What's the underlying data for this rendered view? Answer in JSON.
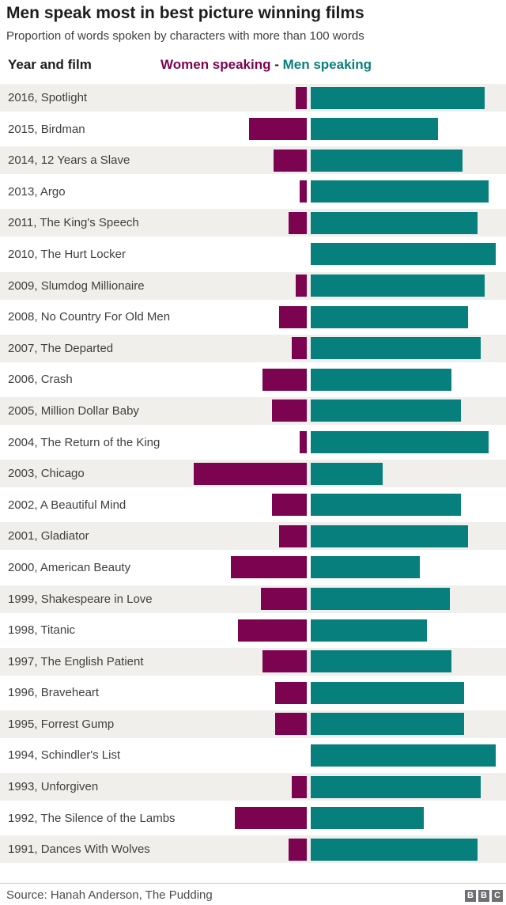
{
  "title": "Men speak most in best picture winning films",
  "subtitle": "Proportion of words spoken by characters with more than 100 words",
  "column_header": {
    "left_label": "Year and film",
    "legend_women": "Women speaking",
    "legend_separator": " - ",
    "legend_men": "Men speaking"
  },
  "colors": {
    "women": "#7b0350",
    "men": "#077f7c",
    "row_stripe": "#f1efeb",
    "logo_gray": "#6e6e73"
  },
  "chart_data": {
    "type": "bar",
    "orientation": "horizontal-diverging",
    "title": "Men speak most in best picture winning films",
    "subtitle": "Proportion of words spoken by characters with more than 100 words",
    "unit": "percent of words spoken by characters with more than 100 words",
    "axis_range_percent": [
      0,
      100
    ],
    "grid": false,
    "legend_position": "top",
    "categories": [
      "2016, Spotlight",
      "2015, Birdman",
      "2014, 12 Years a Slave",
      "2013, Argo",
      "2011, The King's Speech",
      "2010, The Hurt Locker",
      "2009, Slumdog Millionaire",
      "2008, No Country For Old Men",
      "2007, The Departed",
      "2006, Crash",
      "2005, Million Dollar Baby",
      "2004, The Return of the King",
      "2003, Chicago",
      "2002, A Beautiful Mind",
      "2001, Gladiator",
      "2000, American Beauty",
      "1999, Shakespeare in Love",
      "1998, Titanic",
      "1997, The English Patient",
      "1996, Braveheart",
      "1995, Forrest Gump",
      "1994, Schindler's List",
      "1993, Unforgiven",
      "1992, The Silence of the Lambs",
      "1991, Dances With Wolves"
    ],
    "series": [
      {
        "name": "Women speaking",
        "color": "#7b0350",
        "values": [
          6,
          31,
          18,
          4,
          10,
          0,
          6,
          15,
          8,
          24,
          19,
          4,
          61,
          19,
          15,
          41,
          25,
          37,
          24,
          17,
          17,
          0,
          8,
          39,
          10
        ]
      },
      {
        "name": "Men speaking",
        "color": "#077f7c",
        "values": [
          94,
          69,
          82,
          96,
          90,
          100,
          94,
          85,
          92,
          76,
          81,
          96,
          39,
          81,
          85,
          59,
          75,
          63,
          76,
          83,
          83,
          100,
          92,
          61,
          90
        ]
      }
    ]
  },
  "footer": {
    "source": "Source: Hanah Anderson, The Pudding",
    "logo_blocks": [
      "B",
      "B",
      "C"
    ]
  }
}
